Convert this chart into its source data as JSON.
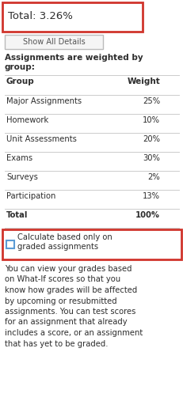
{
  "total_text": "Total: 3.26%",
  "button_text": "Show All Details",
  "weighted_line1": "Assignments are weighted by",
  "weighted_line2": "group:",
  "table_headers": [
    "Group",
    "Weight"
  ],
  "table_rows": [
    [
      "Major Assignments",
      "25%"
    ],
    [
      "Homework",
      "10%"
    ],
    [
      "Unit Assessments",
      "20%"
    ],
    [
      "Exams",
      "30%"
    ],
    [
      "Surveys",
      "2%"
    ],
    [
      "Participation",
      "13%"
    ],
    [
      "Total",
      "100%"
    ]
  ],
  "checkbox_line1": "Calculate based only on",
  "checkbox_line2": "graded assignments",
  "bottom_lines": [
    "You can view your grades based",
    "on What-If scores so that you",
    "know how grades will be affected",
    "by upcoming or resubmitted",
    "assignments. You can test scores",
    "for an assignment that already",
    "includes a score, or an assignment",
    "that has yet to be graded."
  ],
  "bg_color": "#ffffff",
  "border_red": "#d0342c",
  "text_dark": "#2d2d2d",
  "text_gray": "#555555",
  "button_bg": "#f5f5f5",
  "button_border": "#bbbbbb",
  "line_color": "#cccccc",
  "checkbox_border": "#5b9bd5",
  "checkbox_bg": "#ffffff",
  "fig_w": 2.32,
  "fig_h": 5.31,
  "dpi": 100
}
